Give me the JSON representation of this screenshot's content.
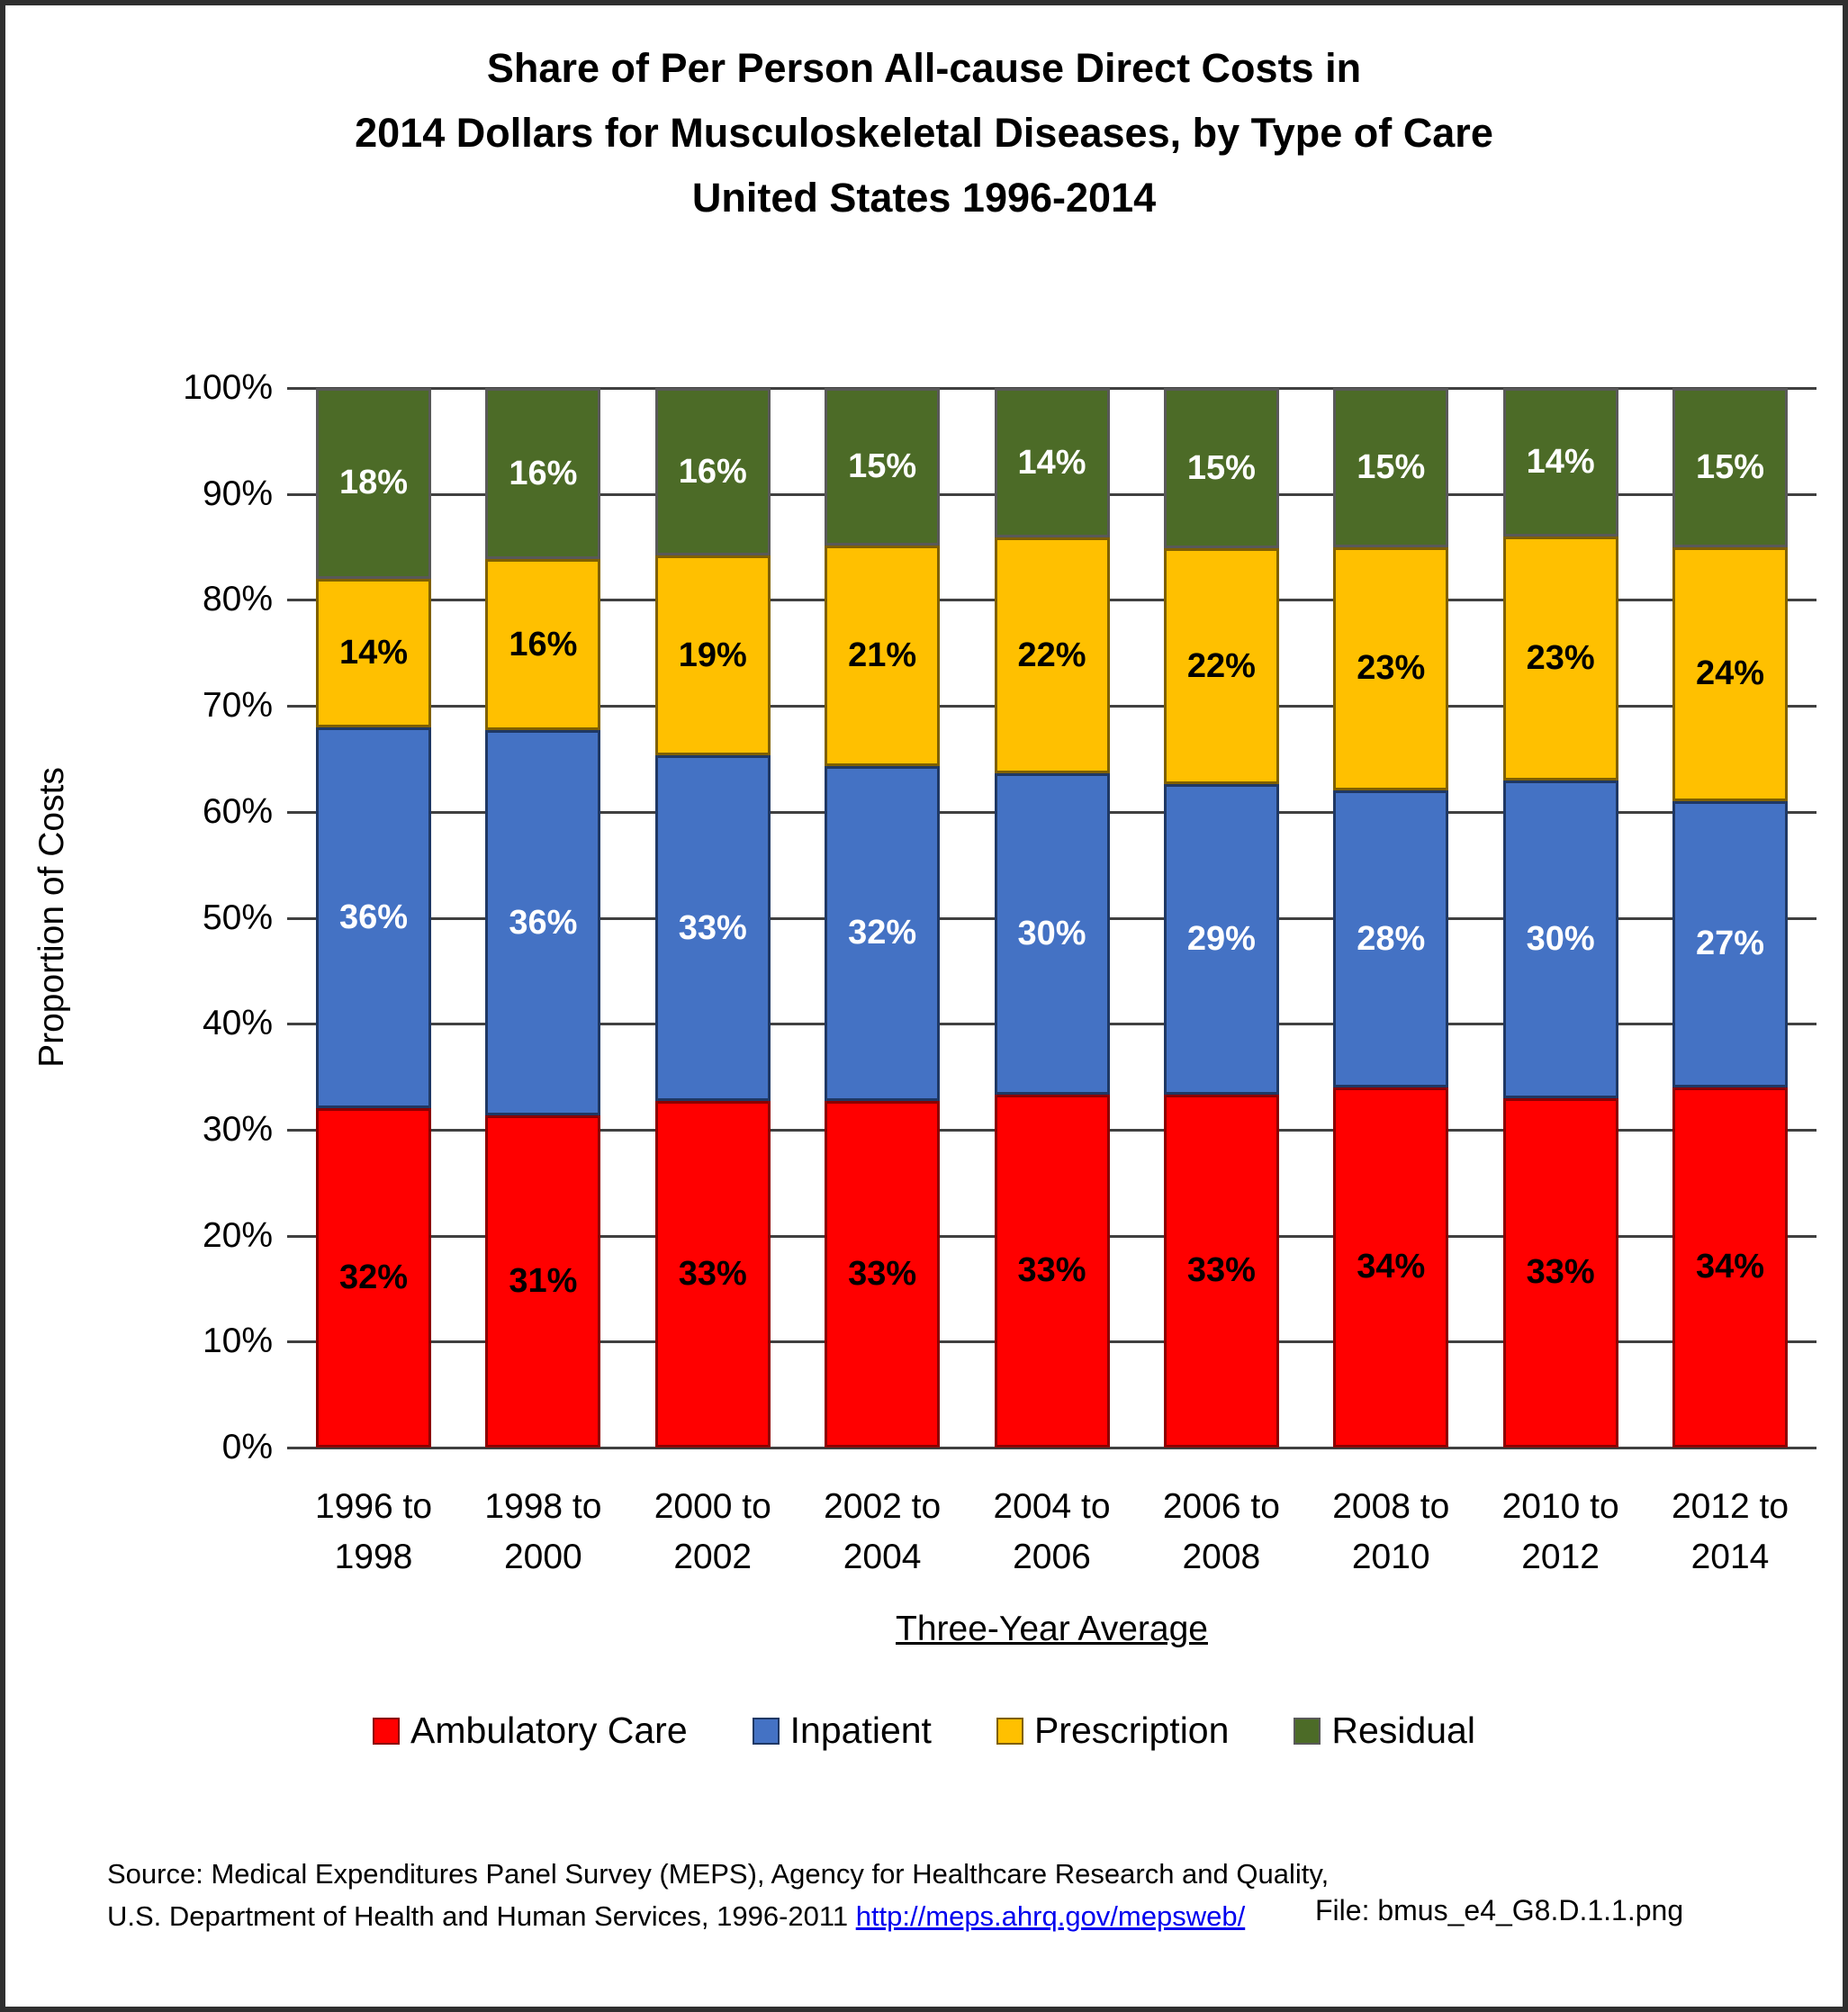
{
  "title_lines": [
    "Share of Per Person All-cause Direct Costs in",
    "2014 Dollars for Musculoskeletal Diseases, by Type of Care",
    "United States 1996-2014"
  ],
  "chart_data": {
    "type": "bar",
    "stacked": true,
    "title": "Share of Per Person All-cause Direct Costs in 2014 Dollars for Musculoskeletal Diseases, by Type of Care, United States 1996-2014",
    "xlabel": "Three-Year Average",
    "ylabel": "Proportion of Costs",
    "ylim": [
      0,
      100
    ],
    "ytick_step": 10,
    "ytick_suffix": "%",
    "grid": true,
    "legend_position": "bottom",
    "categories": [
      "1996 to 1998",
      "1998 to 2000",
      "2000 to 2002",
      "2002 to 2004",
      "2004 to 2006",
      "2006 to 2008",
      "2008 to 2010",
      "2010 to 2012",
      "2012 to 2014"
    ],
    "series": [
      {
        "name": "Ambulatory Care",
        "color": "#FF0000",
        "border_color": "#8B0000",
        "label_color": "#000000",
        "values": [
          32,
          31,
          33,
          33,
          33,
          33,
          34,
          33,
          34
        ]
      },
      {
        "name": "Inpatient",
        "color": "#4472C4",
        "border_color": "#1F3864",
        "label_color": "#FFFFFF",
        "values": [
          36,
          36,
          33,
          32,
          30,
          29,
          28,
          30,
          27
        ]
      },
      {
        "name": "Prescription",
        "color": "#FFC000",
        "border_color": "#7F6000",
        "label_color": "#000000",
        "values": [
          14,
          16,
          19,
          21,
          22,
          22,
          23,
          23,
          24
        ]
      },
      {
        "name": "Residual",
        "color": "#4C6B27",
        "border_color": "#595959",
        "label_color": "#FFFFFF",
        "values": [
          18,
          16,
          16,
          15,
          14,
          15,
          15,
          14,
          15
        ]
      }
    ],
    "value_suffix": "%"
  },
  "footer": {
    "source_line1": "Source: Medical Expenditures Panel Survey (MEPS), Agency for Healthcare Research and Quality,",
    "source_line2_prefix": "U.S. Department of Health and Human Services, 1996-2011 ",
    "source_link": "http://meps.ahrq.gov/mepsweb/",
    "file_label": "File: bmus_e4_G8.D.1.1.png"
  }
}
